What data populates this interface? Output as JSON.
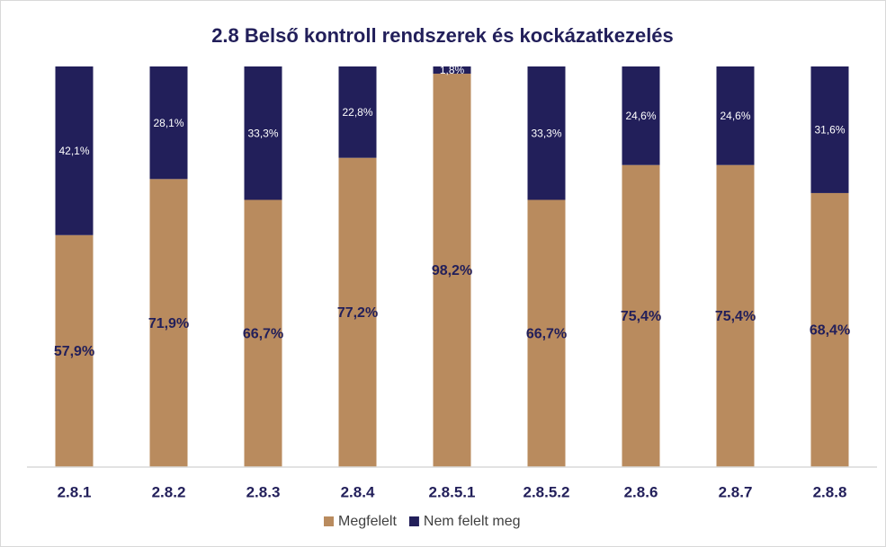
{
  "chart_data": {
    "type": "stacked_bar",
    "title": "2.8 Belső kontroll rendszerek és kockázatkezelés",
    "categories": [
      "2.8.1",
      "2.8.2",
      "2.8.3",
      "2.8.4",
      "2.8.5.1",
      "2.8.5.2",
      "2.8.6",
      "2.8.7",
      "2.8.8"
    ],
    "ylim": [
      0,
      100
    ],
    "series": [
      {
        "name": "Megfelelt",
        "color": "#b98b5e",
        "values": [
          57.9,
          71.9,
          66.7,
          77.2,
          98.2,
          66.7,
          75.4,
          75.4,
          68.4
        ],
        "value_labels": [
          "57,9%",
          "71,9%",
          "66,7%",
          "77,2%",
          "98,2%",
          "66,7%",
          "75,4%",
          "75,4%",
          "68,4%"
        ]
      },
      {
        "name": "Nem felelt meg",
        "color": "#221f5a",
        "values": [
          42.1,
          28.1,
          33.3,
          22.8,
          1.8,
          33.3,
          24.6,
          24.6,
          31.6
        ],
        "value_labels": [
          "42,1%",
          "28,1%",
          "33,3%",
          "22,8%",
          "1,8%",
          "33,3%",
          "24,6%",
          "24,6%",
          "31,6%"
        ]
      }
    ],
    "legend": "bottom"
  }
}
